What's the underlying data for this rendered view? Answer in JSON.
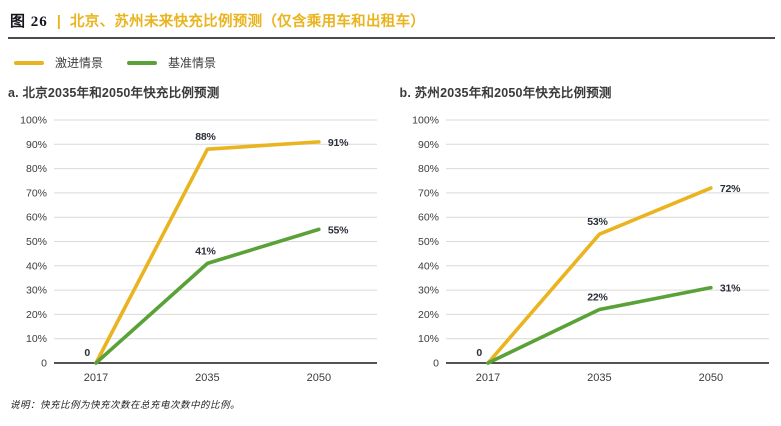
{
  "header": {
    "figure_label": "图 26",
    "separator": "|",
    "title": "北京、苏州未来快充比例预测（仅含乘用车和出租车）"
  },
  "legend": {
    "items": [
      {
        "label": "激进情景",
        "color": "#E9B41F"
      },
      {
        "label": "基准情景",
        "color": "#5AA237"
      }
    ]
  },
  "colors": {
    "accent_gold": "#E9B41F",
    "accent_green": "#5AA237",
    "grid": "#D9D9D9",
    "axis": "#1B1B1B",
    "header_rule": "#4B4B4B",
    "tick_text": "#3C3C3C",
    "label_text": "#2B2F3A"
  },
  "chart_data": [
    {
      "type": "line",
      "title": "a. 北京2035年和2050年快充比例预测",
      "x": [
        "2017",
        "2035",
        "2050"
      ],
      "y_ticks": [
        "100%",
        "90%",
        "80%",
        "70%",
        "60%",
        "50%",
        "40%",
        "30%",
        "20%",
        "10%",
        "0"
      ],
      "ylim": [
        0,
        100
      ],
      "grid": true,
      "legend_position": "top-left-shared",
      "origin_label": "0",
      "series": [
        {
          "name": "激进情景",
          "color": "#E9B41F",
          "values": [
            0,
            88,
            91
          ],
          "point_labels": [
            "",
            "88%",
            "91%"
          ]
        },
        {
          "name": "基准情景",
          "color": "#5AA237",
          "values": [
            0,
            41,
            55
          ],
          "point_labels": [
            "",
            "41%",
            "55%"
          ]
        }
      ]
    },
    {
      "type": "line",
      "title": "b. 苏州2035年和2050年快充比例预测",
      "x": [
        "2017",
        "2035",
        "2050"
      ],
      "y_ticks": [
        "100%",
        "90%",
        "80%",
        "70%",
        "60%",
        "50%",
        "40%",
        "30%",
        "20%",
        "10%",
        "0"
      ],
      "ylim": [
        0,
        100
      ],
      "grid": true,
      "legend_position": "top-left-shared",
      "origin_label": "0",
      "series": [
        {
          "name": "激进情景",
          "color": "#E9B41F",
          "values": [
            0,
            53,
            72
          ],
          "point_labels": [
            "",
            "53%",
            "72%"
          ]
        },
        {
          "name": "基准情景",
          "color": "#5AA237",
          "values": [
            0,
            22,
            31
          ],
          "point_labels": [
            "",
            "22%",
            "31%"
          ]
        }
      ]
    }
  ],
  "footnote": "说明：快充比例为快充次数在总充电次数中的比例。"
}
